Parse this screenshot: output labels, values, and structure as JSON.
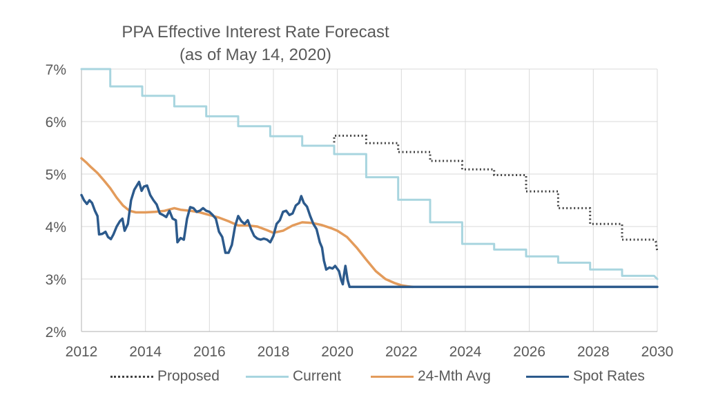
{
  "chart_data": {
    "type": "line",
    "title": "PPA Effective Interest Rate Forecast",
    "subtitle": "(as of May 14, 2020)",
    "xlabel": "",
    "ylabel": "",
    "xlim": [
      2012,
      2030
    ],
    "ylim": [
      2,
      7
    ],
    "x_ticks": [
      "2012",
      "2014",
      "2016",
      "2018",
      "2020",
      "2022",
      "2024",
      "2026",
      "2028",
      "2030"
    ],
    "y_ticks": [
      "2%",
      "3%",
      "4%",
      "5%",
      "6%",
      "7%"
    ],
    "grid": "vertical-and-horizontal",
    "legend_position": "bottom",
    "series": [
      {
        "name": "Proposed",
        "color": "#404040",
        "style": "dotted",
        "points": [
          [
            2019.9,
            5.6
          ],
          [
            2019.9,
            5.73
          ],
          [
            2020.9,
            5.73
          ],
          [
            2020.9,
            5.59
          ],
          [
            2021.9,
            5.59
          ],
          [
            2021.9,
            5.42
          ],
          [
            2022.9,
            5.42
          ],
          [
            2022.9,
            5.25
          ],
          [
            2023.9,
            5.25
          ],
          [
            2023.9,
            5.09
          ],
          [
            2024.9,
            5.09
          ],
          [
            2024.9,
            4.98
          ],
          [
            2025.9,
            4.98
          ],
          [
            2025.9,
            4.67
          ],
          [
            2026.9,
            4.67
          ],
          [
            2026.9,
            4.35
          ],
          [
            2027.9,
            4.35
          ],
          [
            2027.9,
            4.05
          ],
          [
            2028.9,
            4.05
          ],
          [
            2028.9,
            3.75
          ],
          [
            2029.9,
            3.75
          ],
          [
            2029.95,
            3.72
          ],
          [
            2030,
            3.52
          ]
        ]
      },
      {
        "name": "Current",
        "color": "#A8D5DF",
        "style": "solid",
        "points": [
          [
            2012,
            7.0
          ],
          [
            2012.9,
            7.0
          ],
          [
            2012.9,
            6.67
          ],
          [
            2013.9,
            6.67
          ],
          [
            2013.9,
            6.49
          ],
          [
            2014.9,
            6.49
          ],
          [
            2014.9,
            6.29
          ],
          [
            2015.9,
            6.29
          ],
          [
            2015.9,
            6.1
          ],
          [
            2016.9,
            6.1
          ],
          [
            2016.9,
            5.91
          ],
          [
            2017.9,
            5.91
          ],
          [
            2017.9,
            5.72
          ],
          [
            2018.9,
            5.72
          ],
          [
            2018.9,
            5.54
          ],
          [
            2019.9,
            5.54
          ],
          [
            2019.9,
            5.38
          ],
          [
            2020.9,
            5.38
          ],
          [
            2020.9,
            4.94
          ],
          [
            2021.9,
            4.94
          ],
          [
            2021.9,
            4.51
          ],
          [
            2022.9,
            4.51
          ],
          [
            2022.9,
            4.08
          ],
          [
            2023.9,
            4.08
          ],
          [
            2023.9,
            3.67
          ],
          [
            2024.9,
            3.67
          ],
          [
            2024.9,
            3.56
          ],
          [
            2025.9,
            3.56
          ],
          [
            2025.9,
            3.43
          ],
          [
            2026.9,
            3.43
          ],
          [
            2026.9,
            3.31
          ],
          [
            2027.9,
            3.31
          ],
          [
            2027.9,
            3.18
          ],
          [
            2028.9,
            3.18
          ],
          [
            2028.9,
            3.06
          ],
          [
            2029.9,
            3.06
          ],
          [
            2030,
            3.0
          ]
        ]
      },
      {
        "name": "24-Mth Avg",
        "color": "#E39B5B",
        "style": "solid",
        "points": [
          [
            2012,
            5.3
          ],
          [
            2012.15,
            5.22
          ],
          [
            2012.3,
            5.13
          ],
          [
            2012.5,
            5.02
          ],
          [
            2012.7,
            4.88
          ],
          [
            2012.9,
            4.73
          ],
          [
            2013.1,
            4.55
          ],
          [
            2013.3,
            4.4
          ],
          [
            2013.5,
            4.3
          ],
          [
            2013.7,
            4.27
          ],
          [
            2014.0,
            4.27
          ],
          [
            2014.3,
            4.28
          ],
          [
            2014.6,
            4.3
          ],
          [
            2014.9,
            4.35
          ],
          [
            2015.1,
            4.32
          ],
          [
            2015.4,
            4.3
          ],
          [
            2015.7,
            4.27
          ],
          [
            2016.0,
            4.22
          ],
          [
            2016.3,
            4.17
          ],
          [
            2016.6,
            4.1
          ],
          [
            2016.9,
            4.02
          ],
          [
            2017.2,
            4.02
          ],
          [
            2017.5,
            4.0
          ],
          [
            2017.8,
            3.93
          ],
          [
            2018.0,
            3.88
          ],
          [
            2018.3,
            3.92
          ],
          [
            2018.6,
            4.02
          ],
          [
            2018.9,
            4.08
          ],
          [
            2019.2,
            4.07
          ],
          [
            2019.5,
            4.03
          ],
          [
            2019.8,
            3.97
          ],
          [
            2020.0,
            3.92
          ],
          [
            2020.3,
            3.8
          ],
          [
            2020.6,
            3.6
          ],
          [
            2020.9,
            3.37
          ],
          [
            2021.2,
            3.15
          ],
          [
            2021.5,
            3.0
          ],
          [
            2021.8,
            2.92
          ],
          [
            2022.0,
            2.88
          ],
          [
            2022.2,
            2.86
          ],
          [
            2022.35,
            2.85
          ]
        ]
      },
      {
        "name": "Spot Rates",
        "color": "#2C5A8C",
        "style": "solid",
        "points": [
          [
            2012,
            4.6
          ],
          [
            2012.08,
            4.5
          ],
          [
            2012.17,
            4.43
          ],
          [
            2012.25,
            4.5
          ],
          [
            2012.33,
            4.45
          ],
          [
            2012.42,
            4.3
          ],
          [
            2012.5,
            4.2
          ],
          [
            2012.55,
            3.85
          ],
          [
            2012.65,
            3.86
          ],
          [
            2012.75,
            3.9
          ],
          [
            2012.83,
            3.8
          ],
          [
            2012.92,
            3.76
          ],
          [
            2013.0,
            3.85
          ],
          [
            2013.1,
            4.0
          ],
          [
            2013.2,
            4.1
          ],
          [
            2013.28,
            4.15
          ],
          [
            2013.35,
            3.92
          ],
          [
            2013.45,
            4.05
          ],
          [
            2013.55,
            4.5
          ],
          [
            2013.65,
            4.7
          ],
          [
            2013.75,
            4.8
          ],
          [
            2013.8,
            4.85
          ],
          [
            2013.88,
            4.68
          ],
          [
            2013.95,
            4.76
          ],
          [
            2014.05,
            4.78
          ],
          [
            2014.15,
            4.6
          ],
          [
            2014.25,
            4.5
          ],
          [
            2014.35,
            4.42
          ],
          [
            2014.45,
            4.25
          ],
          [
            2014.55,
            4.22
          ],
          [
            2014.65,
            4.18
          ],
          [
            2014.75,
            4.3
          ],
          [
            2014.85,
            4.15
          ],
          [
            2014.95,
            4.12
          ],
          [
            2015.0,
            3.7
          ],
          [
            2015.1,
            3.78
          ],
          [
            2015.2,
            3.75
          ],
          [
            2015.3,
            4.15
          ],
          [
            2015.4,
            4.37
          ],
          [
            2015.5,
            4.35
          ],
          [
            2015.6,
            4.28
          ],
          [
            2015.7,
            4.3
          ],
          [
            2015.8,
            4.35
          ],
          [
            2015.9,
            4.3
          ],
          [
            2016.0,
            4.28
          ],
          [
            2016.1,
            4.22
          ],
          [
            2016.2,
            4.15
          ],
          [
            2016.3,
            3.9
          ],
          [
            2016.4,
            3.8
          ],
          [
            2016.5,
            3.5
          ],
          [
            2016.6,
            3.5
          ],
          [
            2016.7,
            3.65
          ],
          [
            2016.8,
            4.0
          ],
          [
            2016.9,
            4.2
          ],
          [
            2017.0,
            4.1
          ],
          [
            2017.1,
            4.05
          ],
          [
            2017.2,
            4.12
          ],
          [
            2017.3,
            3.95
          ],
          [
            2017.4,
            3.82
          ],
          [
            2017.5,
            3.77
          ],
          [
            2017.6,
            3.75
          ],
          [
            2017.7,
            3.77
          ],
          [
            2017.8,
            3.75
          ],
          [
            2017.9,
            3.7
          ],
          [
            2018.0,
            3.82
          ],
          [
            2018.1,
            4.05
          ],
          [
            2018.2,
            4.12
          ],
          [
            2018.3,
            4.28
          ],
          [
            2018.4,
            4.3
          ],
          [
            2018.5,
            4.22
          ],
          [
            2018.6,
            4.25
          ],
          [
            2018.7,
            4.4
          ],
          [
            2018.8,
            4.45
          ],
          [
            2018.87,
            4.58
          ],
          [
            2018.95,
            4.45
          ],
          [
            2019.05,
            4.38
          ],
          [
            2019.15,
            4.2
          ],
          [
            2019.25,
            4.05
          ],
          [
            2019.35,
            3.95
          ],
          [
            2019.45,
            3.7
          ],
          [
            2019.52,
            3.6
          ],
          [
            2019.58,
            3.35
          ],
          [
            2019.65,
            3.18
          ],
          [
            2019.75,
            3.22
          ],
          [
            2019.85,
            3.2
          ],
          [
            2019.93,
            3.25
          ],
          [
            2020.05,
            3.15
          ],
          [
            2020.12,
            2.98
          ],
          [
            2020.17,
            2.9
          ],
          [
            2020.2,
            3.05
          ],
          [
            2020.25,
            3.25
          ],
          [
            2020.32,
            2.98
          ],
          [
            2020.38,
            2.85
          ],
          [
            2030,
            2.85
          ]
        ]
      }
    ]
  }
}
